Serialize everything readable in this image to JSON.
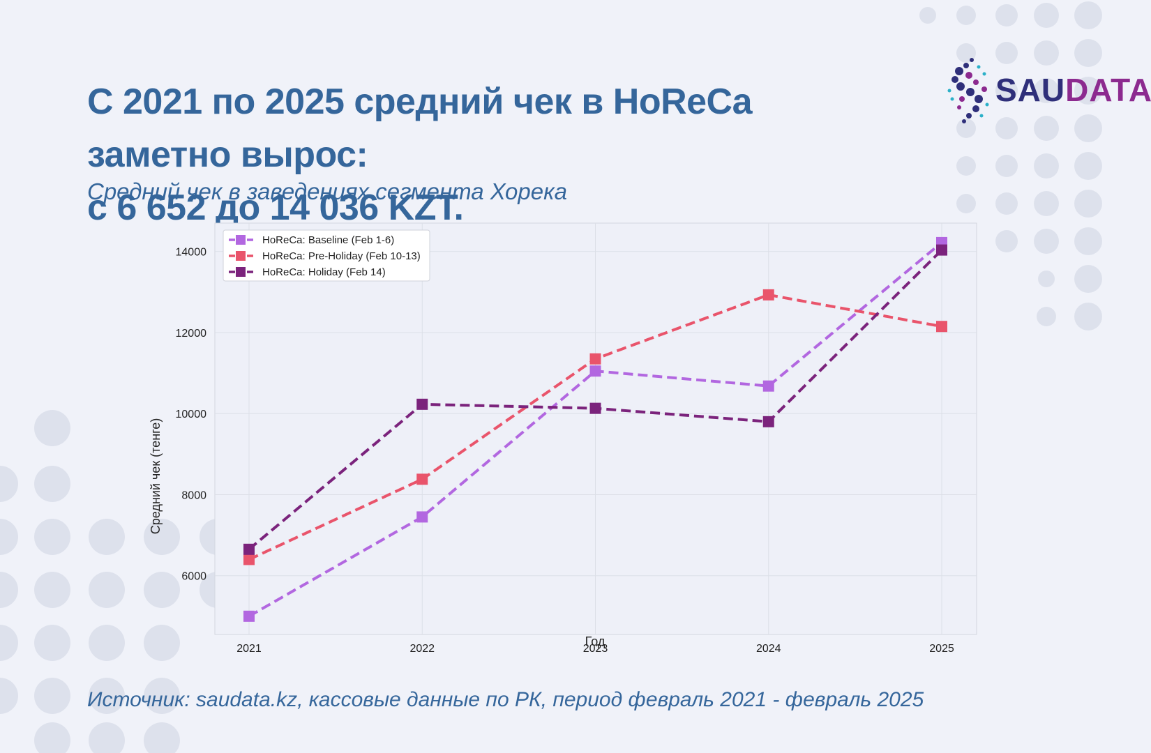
{
  "headline": {
    "line1": "С 2021 по 2025 средний чек в HoReCa заметно вырос:",
    "line2": "с 6 652 до 14 036 KZT."
  },
  "subtitle": "Средний чек в  заведениях сегмента Хорека",
  "source": "Источник: saudata.kz, кассовые данные по РК, период февраль 2021 - февраль 2025",
  "logo": {
    "part1": "SAU",
    "part2": "DATA",
    "color1": "#2f2f7a",
    "color2": "#8c2a8f"
  },
  "chart_data": {
    "type": "line",
    "title": "",
    "xlabel": "Год",
    "ylabel": "Средний чек (тенге)",
    "categories": [
      "2021",
      "2022",
      "2023",
      "2024",
      "2025"
    ],
    "yticks": [
      6000,
      8000,
      10000,
      12000,
      14000
    ],
    "ylim": [
      4550,
      14700
    ],
    "legend_position": "top-left",
    "grid": true,
    "series": [
      {
        "name": "HoReCa: Baseline (Feb 1-6)",
        "color": "#b267e0",
        "values": [
          5000,
          7450,
          11050,
          10680,
          14220
        ]
      },
      {
        "name": "HoReCa: Pre-Holiday (Feb 10-13)",
        "color": "#e9546b",
        "values": [
          6400,
          8380,
          11350,
          12930,
          12150
        ]
      },
      {
        "name": "HoReCa: Holiday (Feb 14)",
        "color": "#7b237c",
        "values": [
          6652,
          10230,
          10130,
          9800,
          14036
        ]
      }
    ]
  }
}
